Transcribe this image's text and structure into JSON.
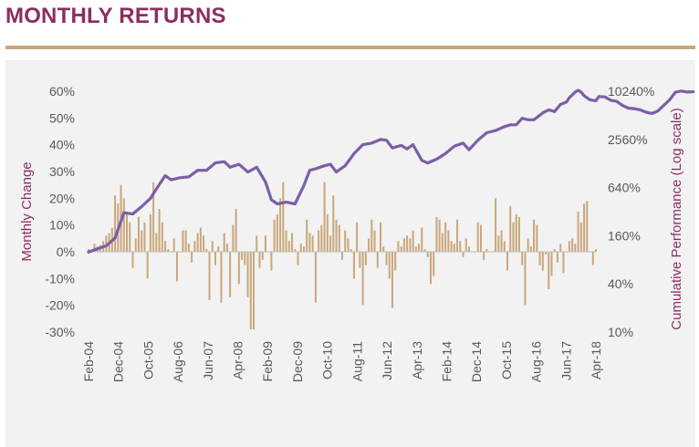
{
  "page": {
    "title": "MONTHLY RETURNS"
  },
  "chart_data": {
    "type": "bar+line",
    "ylabel": "Monthly Change",
    "y2label": "Cumulative Performance (Log scale)",
    "ylim": [
      -30,
      60
    ],
    "y_ticks": [
      "60%",
      "50%",
      "40%",
      "30%",
      "20%",
      "10%",
      "0%",
      "-10%",
      "-20%",
      "-30%"
    ],
    "y2_ticks": [
      "10240%",
      "2560%",
      "640%",
      "160%",
      "40%",
      "10%"
    ],
    "x_ticks": [
      "Feb-04",
      "Dec-04",
      "Oct-05",
      "Aug-06",
      "Jun-07",
      "Apr-08",
      "Feb-09",
      "Dec-09",
      "Oct-10",
      "Aug-11",
      "Jun-12",
      "Apr-13",
      "Feb-14",
      "Dec-14",
      "Oct-15",
      "Aug-16",
      "Jun-17",
      "Apr-18"
    ],
    "bar_color": "#C9A67A",
    "line_color": "#7B5EA7",
    "series": [
      {
        "name": "Monthly Change (%)",
        "type": "bar",
        "values": [
          1,
          0.5,
          3,
          2,
          2.5,
          4,
          6,
          7,
          9,
          21,
          18,
          25,
          20,
          14,
          11,
          -6,
          5,
          13,
          8,
          11,
          -10,
          14,
          26,
          7,
          16,
          11,
          4,
          1,
          0,
          5,
          -11,
          0,
          8,
          8,
          3,
          -4,
          4,
          7,
          9,
          6,
          1,
          -18,
          4,
          -5,
          2,
          -19,
          7,
          3,
          -17,
          10,
          16,
          -12,
          -3,
          -5,
          -17,
          -29,
          -29,
          6,
          -6,
          -3,
          6,
          0,
          -7,
          12,
          14,
          20,
          26,
          8,
          4,
          7,
          1,
          -5,
          3,
          2,
          12,
          7,
          6,
          -19,
          8,
          10,
          26,
          14,
          6,
          21,
          12,
          10,
          -3,
          8,
          5,
          1,
          -10,
          11,
          -6,
          -20,
          -5,
          5,
          12,
          8,
          -6,
          11,
          2,
          -5,
          -10,
          -21,
          -7,
          4,
          2,
          5,
          6,
          5,
          8,
          2,
          3,
          9,
          1,
          -2,
          -12,
          -9,
          13,
          12,
          7,
          11,
          8,
          4,
          3,
          12,
          4,
          -2,
          5,
          2,
          0,
          0,
          11,
          10,
          -3,
          1,
          0,
          0,
          20,
          6,
          8,
          4,
          -7,
          17,
          11,
          14,
          13,
          -5,
          -20,
          5,
          2,
          12,
          10,
          -5,
          -7,
          -1,
          -14,
          -9,
          1,
          -4,
          3,
          -8,
          0,
          4,
          5,
          3,
          15,
          11,
          18,
          19,
          0,
          -5,
          1
        ],
        "x_start": "Feb-04",
        "x_end": "Apr-18"
      },
      {
        "name": "Cumulative Performance (%)",
        "type": "line",
        "log_scale": true,
        "points": [
          {
            "x": 0,
            "y": 100
          },
          {
            "x": 6,
            "y": 120
          },
          {
            "x": 9,
            "y": 150
          },
          {
            "x": 12,
            "y": 310
          },
          {
            "x": 15,
            "y": 300
          },
          {
            "x": 18,
            "y": 370
          },
          {
            "x": 21,
            "y": 470
          },
          {
            "x": 24,
            "y": 700
          },
          {
            "x": 26,
            "y": 900
          },
          {
            "x": 28,
            "y": 800
          },
          {
            "x": 31,
            "y": 850
          },
          {
            "x": 34,
            "y": 870
          },
          {
            "x": 37,
            "y": 1050
          },
          {
            "x": 40,
            "y": 1050
          },
          {
            "x": 43,
            "y": 1300
          },
          {
            "x": 46,
            "y": 1350
          },
          {
            "x": 48,
            "y": 1150
          },
          {
            "x": 51,
            "y": 1250
          },
          {
            "x": 54,
            "y": 1000
          },
          {
            "x": 57,
            "y": 1150
          },
          {
            "x": 60,
            "y": 750
          },
          {
            "x": 62,
            "y": 450
          },
          {
            "x": 64,
            "y": 400
          },
          {
            "x": 67,
            "y": 420
          },
          {
            "x": 70,
            "y": 400
          },
          {
            "x": 73,
            "y": 680
          },
          {
            "x": 75,
            "y": 1050
          },
          {
            "x": 77,
            "y": 1100
          },
          {
            "x": 80,
            "y": 1200
          },
          {
            "x": 82,
            "y": 1250
          },
          {
            "x": 84,
            "y": 1000
          },
          {
            "x": 87,
            "y": 1200
          },
          {
            "x": 90,
            "y": 1700
          },
          {
            "x": 93,
            "y": 2200
          },
          {
            "x": 96,
            "y": 2300
          },
          {
            "x": 99,
            "y": 2550
          },
          {
            "x": 101,
            "y": 2500
          },
          {
            "x": 103,
            "y": 2000
          },
          {
            "x": 106,
            "y": 2150
          },
          {
            "x": 108,
            "y": 1950
          },
          {
            "x": 110,
            "y": 2200
          },
          {
            "x": 113,
            "y": 1400
          },
          {
            "x": 115,
            "y": 1300
          },
          {
            "x": 118,
            "y": 1450
          },
          {
            "x": 121,
            "y": 1700
          },
          {
            "x": 124,
            "y": 2100
          },
          {
            "x": 127,
            "y": 2300
          },
          {
            "x": 129,
            "y": 1900
          },
          {
            "x": 132,
            "y": 2500
          },
          {
            "x": 135,
            "y": 3100
          },
          {
            "x": 138,
            "y": 3300
          },
          {
            "x": 141,
            "y": 3700
          },
          {
            "x": 143,
            "y": 3900
          },
          {
            "x": 145,
            "y": 3900
          },
          {
            "x": 147,
            "y": 4700
          },
          {
            "x": 149,
            "y": 4500
          },
          {
            "x": 151,
            "y": 4500
          },
          {
            "x": 154,
            "y": 5500
          },
          {
            "x": 156,
            "y": 6000
          },
          {
            "x": 158,
            "y": 5700
          },
          {
            "x": 160,
            "y": 7000
          },
          {
            "x": 162,
            "y": 7500
          },
          {
            "x": 163,
            "y": 8500
          },
          {
            "x": 165,
            "y": 10000
          },
          {
            "x": 166,
            "y": 10500
          },
          {
            "x": 167,
            "y": 10000
          },
          {
            "x": 168,
            "y": 9000
          },
          {
            "x": 170,
            "y": 8000
          },
          {
            "x": 172,
            "y": 7800
          },
          {
            "x": 173,
            "y": 8800
          },
          {
            "x": 175,
            "y": 8700
          },
          {
            "x": 177,
            "y": 7900
          },
          {
            "x": 179,
            "y": 7700
          },
          {
            "x": 181,
            "y": 6800
          },
          {
            "x": 183,
            "y": 6300
          },
          {
            "x": 185,
            "y": 6200
          },
          {
            "x": 187,
            "y": 6000
          },
          {
            "x": 189,
            "y": 5600
          },
          {
            "x": 191,
            "y": 5400
          },
          {
            "x": 193,
            "y": 5800
          },
          {
            "x": 195,
            "y": 6800
          },
          {
            "x": 197,
            "y": 8000
          },
          {
            "x": 199,
            "y": 10000
          },
          {
            "x": 201,
            "y": 10300
          },
          {
            "x": 203,
            "y": 10000
          },
          {
            "x": 205,
            "y": 10100
          }
        ]
      }
    ]
  }
}
